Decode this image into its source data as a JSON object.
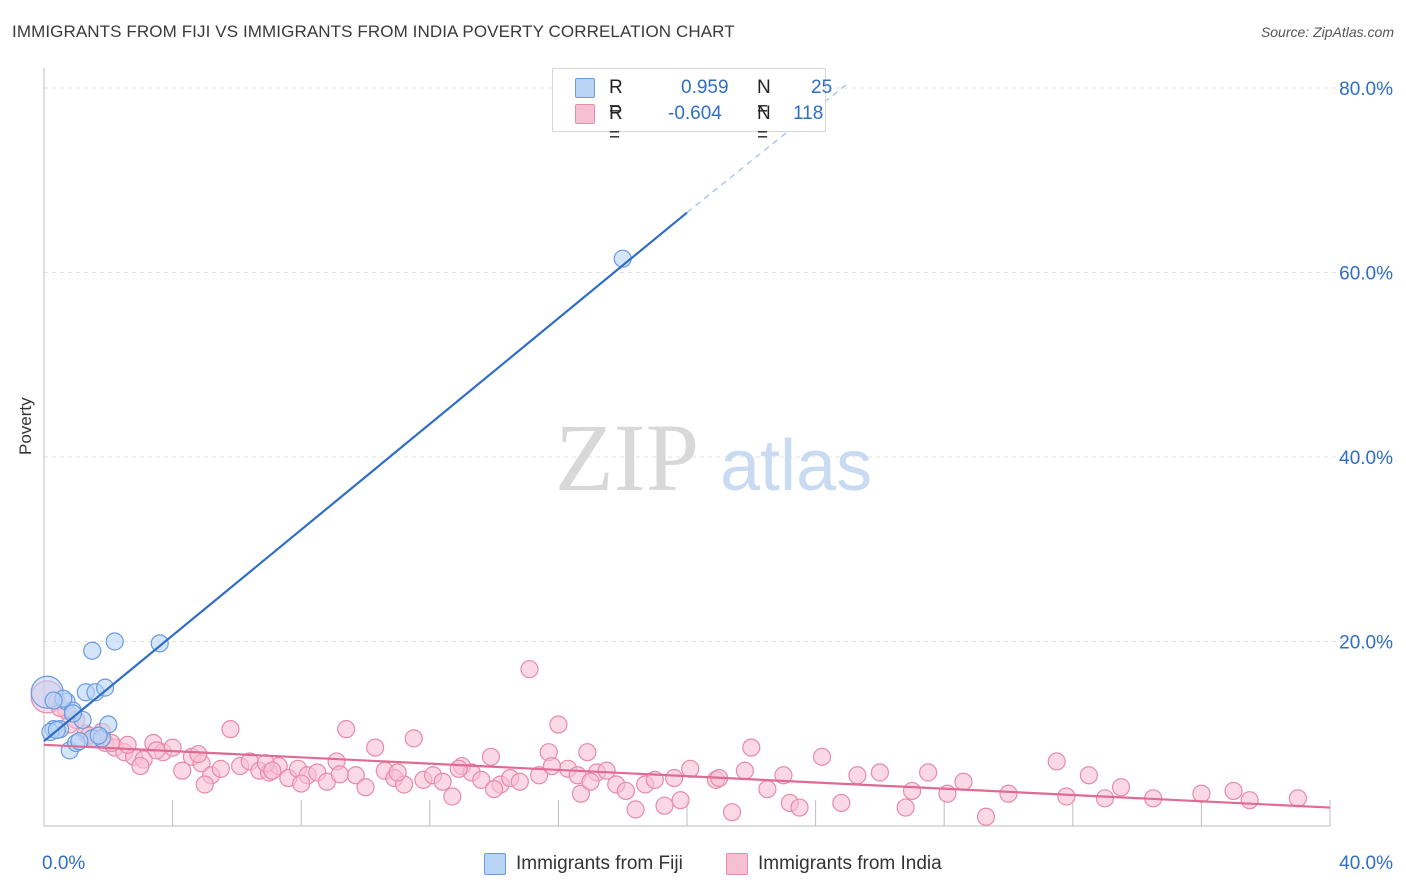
{
  "title": "IMMIGRANTS FROM FIJI VS IMMIGRANTS FROM INDIA POVERTY CORRELATION CHART",
  "source": "Source: ZipAtlas.com",
  "watermark": {
    "zip": "ZIP",
    "atlas": "atlas"
  },
  "legend": {
    "r_label": "R =",
    "n_label": "N =",
    "series": [
      {
        "r": "0.959",
        "n": "25",
        "fill": "#b9d3f5",
        "stroke": "#6a9be0"
      },
      {
        "r": "-0.604",
        "n": "118",
        "fill": "#f7c0d2",
        "stroke": "#e88aa9"
      }
    ]
  },
  "chart_data": {
    "type": "scatter",
    "title": "IMMIGRANTS FROM FIJI VS IMMIGRANTS FROM INDIA POVERTY CORRELATION CHART",
    "xlabel": "",
    "ylabel": "Poverty",
    "xlim": [
      0,
      40
    ],
    "ylim": [
      0,
      80
    ],
    "x_tick_labels": [
      "0.0%",
      "40.0%"
    ],
    "y_tick_labels": [
      "20.0%",
      "40.0%",
      "60.0%",
      "80.0%"
    ],
    "y_ticks": [
      20,
      40,
      60,
      80
    ],
    "x_ticks": [
      0,
      4,
      8,
      12,
      16,
      20,
      24,
      28,
      32,
      36,
      40
    ],
    "grid": true,
    "series": [
      {
        "name": "Immigrants from Fiji",
        "color": "#6a9be0",
        "fill": "#b9d3f5",
        "trend_color": "#2f6ec7",
        "trend": {
          "x0": 0,
          "y0": 9.2,
          "x1": 20,
          "y1": 66.5,
          "dash_to_x": 25,
          "dash_to_y": 80.5
        },
        "points": [
          [
            0.1,
            14.5
          ],
          [
            0.3,
            10.5
          ],
          [
            0.5,
            10.5
          ],
          [
            0.7,
            13.5
          ],
          [
            0.8,
            8.2
          ],
          [
            0.9,
            12.5
          ],
          [
            1.0,
            9.0
          ],
          [
            1.2,
            11.5
          ],
          [
            1.3,
            14.5
          ],
          [
            1.5,
            9.5
          ],
          [
            1.5,
            19.0
          ],
          [
            1.6,
            14.5
          ],
          [
            1.8,
            9.5
          ],
          [
            1.9,
            15.0
          ],
          [
            2.0,
            11.0
          ],
          [
            2.2,
            20.0
          ],
          [
            3.6,
            19.8
          ],
          [
            18.0,
            61.5
          ],
          [
            0.2,
            10.2
          ],
          [
            0.6,
            13.8
          ],
          [
            1.1,
            9.2
          ],
          [
            0.4,
            10.4
          ],
          [
            1.7,
            9.8
          ],
          [
            0.9,
            12.2
          ],
          [
            0.3,
            13.6
          ]
        ]
      },
      {
        "name": "Immigrants from India",
        "color": "#e88aa9",
        "fill": "#f7c0d2",
        "trend_color": "#e06a94",
        "trend": {
          "x0": 0,
          "y0": 8.8,
          "x1": 40,
          "y1": 2.0
        },
        "points": [
          [
            0.1,
            14.0
          ],
          [
            0.4,
            13.5
          ],
          [
            0.7,
            12.5
          ],
          [
            1.0,
            11.5
          ],
          [
            1.3,
            10.0
          ],
          [
            1.6,
            9.5
          ],
          [
            1.9,
            9.0
          ],
          [
            2.2,
            8.5
          ],
          [
            2.5,
            8.0
          ],
          [
            2.8,
            7.5
          ],
          [
            3.1,
            7.2
          ],
          [
            3.4,
            9.0
          ],
          [
            3.7,
            8.0
          ],
          [
            4.0,
            8.5
          ],
          [
            4.3,
            6.0
          ],
          [
            4.6,
            7.5
          ],
          [
            4.9,
            6.8
          ],
          [
            5.2,
            5.5
          ],
          [
            5.5,
            6.2
          ],
          [
            5.8,
            10.5
          ],
          [
            6.1,
            6.5
          ],
          [
            6.4,
            7.0
          ],
          [
            6.7,
            6.0
          ],
          [
            7.0,
            5.8
          ],
          [
            7.3,
            6.5
          ],
          [
            7.6,
            5.2
          ],
          [
            7.9,
            6.2
          ],
          [
            8.2,
            5.5
          ],
          [
            8.5,
            5.8
          ],
          [
            8.8,
            4.8
          ],
          [
            9.1,
            7.0
          ],
          [
            9.4,
            10.5
          ],
          [
            9.7,
            5.5
          ],
          [
            10.0,
            4.2
          ],
          [
            10.3,
            8.5
          ],
          [
            10.6,
            6.0
          ],
          [
            10.9,
            5.2
          ],
          [
            11.2,
            4.5
          ],
          [
            11.5,
            9.5
          ],
          [
            11.8,
            5.0
          ],
          [
            12.1,
            5.5
          ],
          [
            12.4,
            4.8
          ],
          [
            12.7,
            3.2
          ],
          [
            13.0,
            6.5
          ],
          [
            13.3,
            5.8
          ],
          [
            13.6,
            5.0
          ],
          [
            13.9,
            7.5
          ],
          [
            14.2,
            4.5
          ],
          [
            14.5,
            5.2
          ],
          [
            14.8,
            4.8
          ],
          [
            15.1,
            17.0
          ],
          [
            15.4,
            5.5
          ],
          [
            15.7,
            8.0
          ],
          [
            16.0,
            11.0
          ],
          [
            16.3,
            6.2
          ],
          [
            16.6,
            5.5
          ],
          [
            16.9,
            8.0
          ],
          [
            17.2,
            5.8
          ],
          [
            17.5,
            6.0
          ],
          [
            17.8,
            4.5
          ],
          [
            18.1,
            3.8
          ],
          [
            18.4,
            1.8
          ],
          [
            18.7,
            4.5
          ],
          [
            19.0,
            5.0
          ],
          [
            19.3,
            2.2
          ],
          [
            19.6,
            5.2
          ],
          [
            20.1,
            6.2
          ],
          [
            20.9,
            5.0
          ],
          [
            21.4,
            1.5
          ],
          [
            21.8,
            6.0
          ],
          [
            22.0,
            8.5
          ],
          [
            22.5,
            4.0
          ],
          [
            23.0,
            5.5
          ],
          [
            23.2,
            2.5
          ],
          [
            23.5,
            2.0
          ],
          [
            24.2,
            7.5
          ],
          [
            25.3,
            5.5
          ],
          [
            26.0,
            5.8
          ],
          [
            26.8,
            2.0
          ],
          [
            27.5,
            5.8
          ],
          [
            28.1,
            3.5
          ],
          [
            28.6,
            4.8
          ],
          [
            29.3,
            1.0
          ],
          [
            30.0,
            3.5
          ],
          [
            31.5,
            7.0
          ],
          [
            31.8,
            3.2
          ],
          [
            32.5,
            5.5
          ],
          [
            33.0,
            3.0
          ],
          [
            33.5,
            4.2
          ],
          [
            34.5,
            3.0
          ],
          [
            36.0,
            3.5
          ],
          [
            37.0,
            3.8
          ],
          [
            37.5,
            2.8
          ],
          [
            39.0,
            3.0
          ],
          [
            0.5,
            12.8
          ],
          [
            0.8,
            11.0
          ],
          [
            1.4,
            9.8
          ],
          [
            1.8,
            10.2
          ],
          [
            2.1,
            9.0
          ],
          [
            2.6,
            8.8
          ],
          [
            3.0,
            6.5
          ],
          [
            3.5,
            8.2
          ],
          [
            4.8,
            7.8
          ],
          [
            5.0,
            4.5
          ],
          [
            6.9,
            6.8
          ],
          [
            7.1,
            6.0
          ],
          [
            8.0,
            4.6
          ],
          [
            9.2,
            5.6
          ],
          [
            11.0,
            5.8
          ],
          [
            12.9,
            6.2
          ],
          [
            14.0,
            4.0
          ],
          [
            15.8,
            6.5
          ],
          [
            16.7,
            3.5
          ],
          [
            17.0,
            4.8
          ],
          [
            19.8,
            2.8
          ],
          [
            21.0,
            5.2
          ],
          [
            24.8,
            2.5
          ],
          [
            27.0,
            3.8
          ]
        ]
      }
    ]
  }
}
